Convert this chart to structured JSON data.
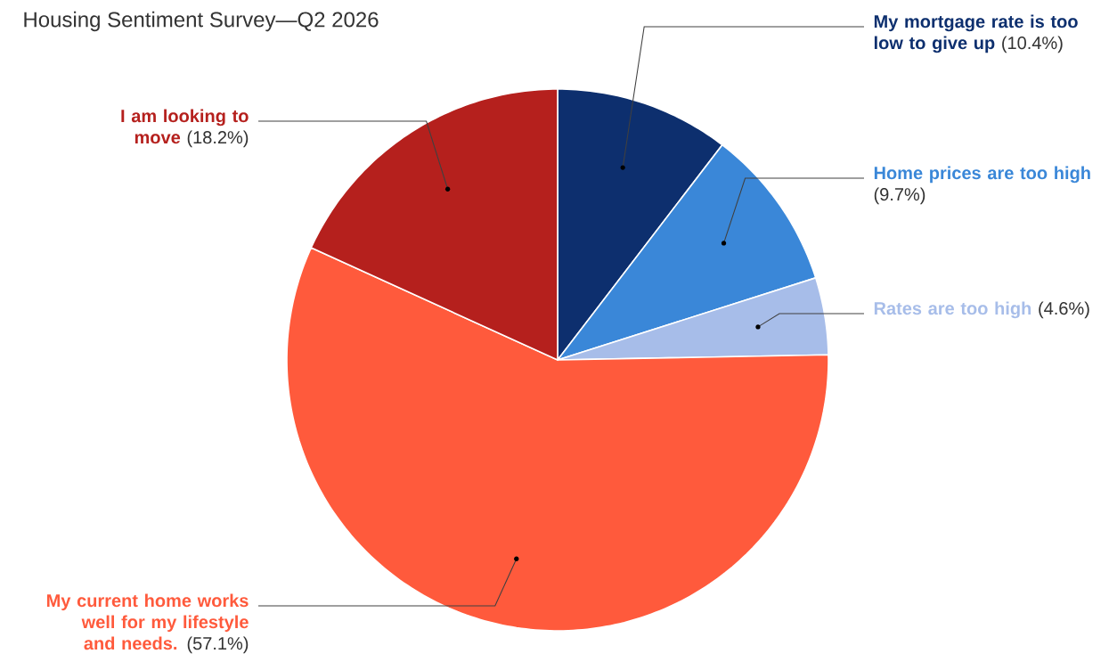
{
  "chart_data": {
    "type": "pie",
    "title": "Housing Sentiment Survey—Q2 2026",
    "categories": [
      "My mortgage rate is too low to give up",
      "Home prices are too high",
      "Rates are too high",
      "My current home works well for my lifestyle and needs.",
      "I am looking to move"
    ],
    "values": [
      10.4,
      9.7,
      4.6,
      57.1,
      18.2
    ],
    "colors": [
      "#0d2f6e",
      "#3a87d8",
      "#a7bde9",
      "#ff5a3c",
      "#b5201d"
    ],
    "value_labels": [
      "(10.4%)",
      "(9.7%)",
      "(4.6%)",
      "(57.1%)",
      "(18.2%)"
    ]
  }
}
